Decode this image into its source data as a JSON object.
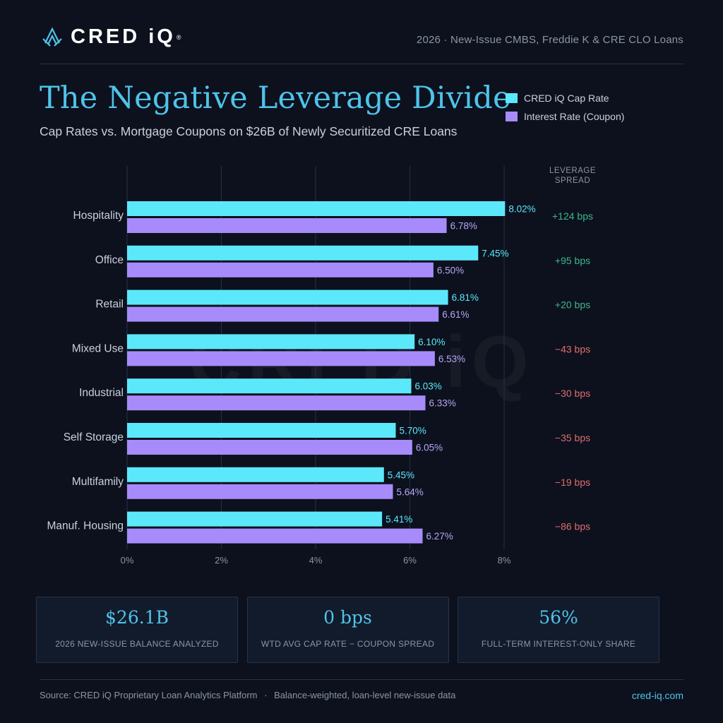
{
  "brand": {
    "name": "CRED iQ",
    "reg_mark": "®",
    "header_right": "2026 · New-Issue CMBS, Freddie K & CRE CLO Loans"
  },
  "title": "The Negative Leverage Divide",
  "subtitle": "Cap Rates vs. Mortgage Coupons on $26B of Newly Securitized CRE Loans",
  "colors": {
    "cap_rate": "#5ce8fb",
    "coupon": "#a78bfa",
    "positive": "#3fb68b",
    "negative": "#e06c6c"
  },
  "chart_data": {
    "type": "bar",
    "orientation": "horizontal",
    "categories": [
      "Hospitality",
      "Office",
      "Retail",
      "Mixed Use",
      "Industrial",
      "Self Storage",
      "Multifamily",
      "Manuf. Housing"
    ],
    "series": [
      {
        "name": "CRED iQ Cap Rate",
        "values": [
          8.02,
          7.45,
          6.81,
          6.1,
          6.03,
          5.7,
          5.45,
          5.41
        ]
      },
      {
        "name": "Interest Rate (Coupon)",
        "values": [
          6.78,
          6.5,
          6.61,
          6.53,
          6.33,
          6.05,
          5.64,
          6.27
        ]
      }
    ],
    "value_labels": [
      [
        "8.02%",
        "7.45%",
        "6.81%",
        "6.10%",
        "6.03%",
        "5.70%",
        "5.45%",
        "5.41%"
      ],
      [
        "6.78%",
        "6.50%",
        "6.61%",
        "6.53%",
        "6.33%",
        "6.05%",
        "5.64%",
        "6.27%"
      ]
    ],
    "spread_header": [
      "LEVERAGE",
      "SPREAD"
    ],
    "spread_labels": [
      "+124 bps",
      "+95 bps",
      "+20 bps",
      "−43 bps",
      "−30 bps",
      "−35 bps",
      "−19 bps",
      "−86 bps"
    ],
    "spread_values": [
      124,
      95,
      20,
      -43,
      -30,
      -35,
      -19,
      -86
    ],
    "x_ticks": [
      "0%",
      "2%",
      "4%",
      "6%",
      "8%"
    ],
    "xlim": [
      0,
      8
    ],
    "grid": true,
    "legend_position": "top-right",
    "watermark": "CRED iQ"
  },
  "stats": [
    {
      "value": "$26.1B",
      "label": "2026 NEW-ISSUE BALANCE ANALYZED"
    },
    {
      "value": "0 bps",
      "label": "WTD AVG CAP RATE − COUPON SPREAD"
    },
    {
      "value": "56%",
      "label": "FULL-TERM INTEREST-ONLY SHARE"
    }
  ],
  "footer": {
    "source": "Source: CRED iQ Proprietary Loan Analytics Platform",
    "separator": "·",
    "note": "Balance-weighted, loan-level new-issue data",
    "url": "cred-iq.com"
  }
}
